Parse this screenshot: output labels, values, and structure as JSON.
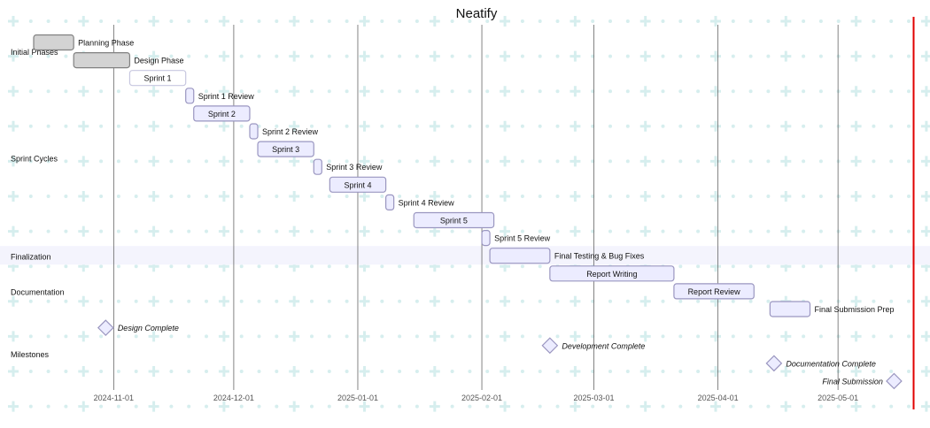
{
  "chart_data": {
    "type": "gantt",
    "title": "Neatify",
    "x_range": [
      "2024-10-12",
      "2025-05-20"
    ],
    "x_axis_ticks": [
      "2024-11-01",
      "2024-12-01",
      "2025-01-01",
      "2025-02-01",
      "2025-03-01",
      "2025-04-01",
      "2025-05-01"
    ],
    "today_marker": "2025-05-20",
    "colors": {
      "done_fill": "#d3d3d3",
      "done_stroke": "#808080",
      "active_fill": "#ffffff",
      "active_stroke": "#c8c8e0",
      "task_fill": "#ececff",
      "task_stroke": "#9a96c0",
      "grid": "#666666",
      "today_line": "#e00000",
      "band": "#f4f4fd",
      "dot": "#d6eeee"
    },
    "sections": [
      {
        "name": "Initial Phases",
        "rows": [
          0,
          1
        ]
      },
      {
        "name": "Sprint Cycles",
        "rows": [
          2,
          11
        ]
      },
      {
        "name": "Finalization",
        "rows": [
          12,
          12
        ]
      },
      {
        "name": "Documentation",
        "rows": [
          13,
          15
        ]
      },
      {
        "name": "Milestones",
        "rows": [
          16,
          19
        ]
      }
    ],
    "tasks": [
      {
        "name": "Planning Phase",
        "start": "2024-10-12",
        "end": "2024-10-22",
        "status": "done",
        "label": "right"
      },
      {
        "name": "Design Phase",
        "start": "2024-10-22",
        "end": "2024-11-05",
        "status": "done",
        "label": "right"
      },
      {
        "name": "Sprint 1",
        "start": "2024-11-05",
        "end": "2024-11-19",
        "status": "active",
        "label": "inside"
      },
      {
        "name": "Sprint 1 Review",
        "start": "2024-11-19",
        "end": "2024-11-21",
        "status": "normal",
        "label": "right"
      },
      {
        "name": "Sprint 2",
        "start": "2024-11-21",
        "end": "2024-12-05",
        "status": "normal",
        "label": "inside"
      },
      {
        "name": "Sprint 2 Review",
        "start": "2024-12-05",
        "end": "2024-12-07",
        "status": "normal",
        "label": "right"
      },
      {
        "name": "Sprint 3",
        "start": "2024-12-07",
        "end": "2024-12-21",
        "status": "normal",
        "label": "inside"
      },
      {
        "name": "Sprint 3 Review",
        "start": "2024-12-21",
        "end": "2024-12-23",
        "status": "normal",
        "label": "right"
      },
      {
        "name": "Sprint 4",
        "start": "2024-12-25",
        "end": "2025-01-08",
        "status": "normal",
        "label": "inside"
      },
      {
        "name": "Sprint 4 Review",
        "start": "2025-01-08",
        "end": "2025-01-10",
        "status": "normal",
        "label": "right"
      },
      {
        "name": "Sprint 5",
        "start": "2025-01-15",
        "end": "2025-02-04",
        "status": "normal",
        "label": "inside"
      },
      {
        "name": "Sprint 5 Review",
        "start": "2025-02-01",
        "end": "2025-02-03",
        "status": "normal",
        "label": "right"
      },
      {
        "name": "Final Testing & Bug Fixes",
        "start": "2025-02-03",
        "end": "2025-02-18",
        "status": "normal",
        "label": "right"
      },
      {
        "name": "Report Writing",
        "start": "2025-02-18",
        "end": "2025-03-21",
        "status": "normal",
        "label": "inside"
      },
      {
        "name": "Report Review",
        "start": "2025-03-21",
        "end": "2025-04-10",
        "status": "normal",
        "label": "inside"
      },
      {
        "name": "Final Submission Prep",
        "start": "2025-04-14",
        "end": "2025-04-24",
        "status": "normal",
        "label": "right"
      }
    ],
    "milestones": [
      {
        "name": "Design Complete",
        "date": "2024-10-30",
        "row": 16,
        "label": "right"
      },
      {
        "name": "Development Complete",
        "date": "2025-02-18",
        "row": 17,
        "label": "right"
      },
      {
        "name": "Documentation Complete",
        "date": "2025-04-15",
        "row": 18,
        "label": "right"
      },
      {
        "name": "Final Submission",
        "date": "2025-05-15",
        "row": 19,
        "label": "left"
      }
    ]
  }
}
